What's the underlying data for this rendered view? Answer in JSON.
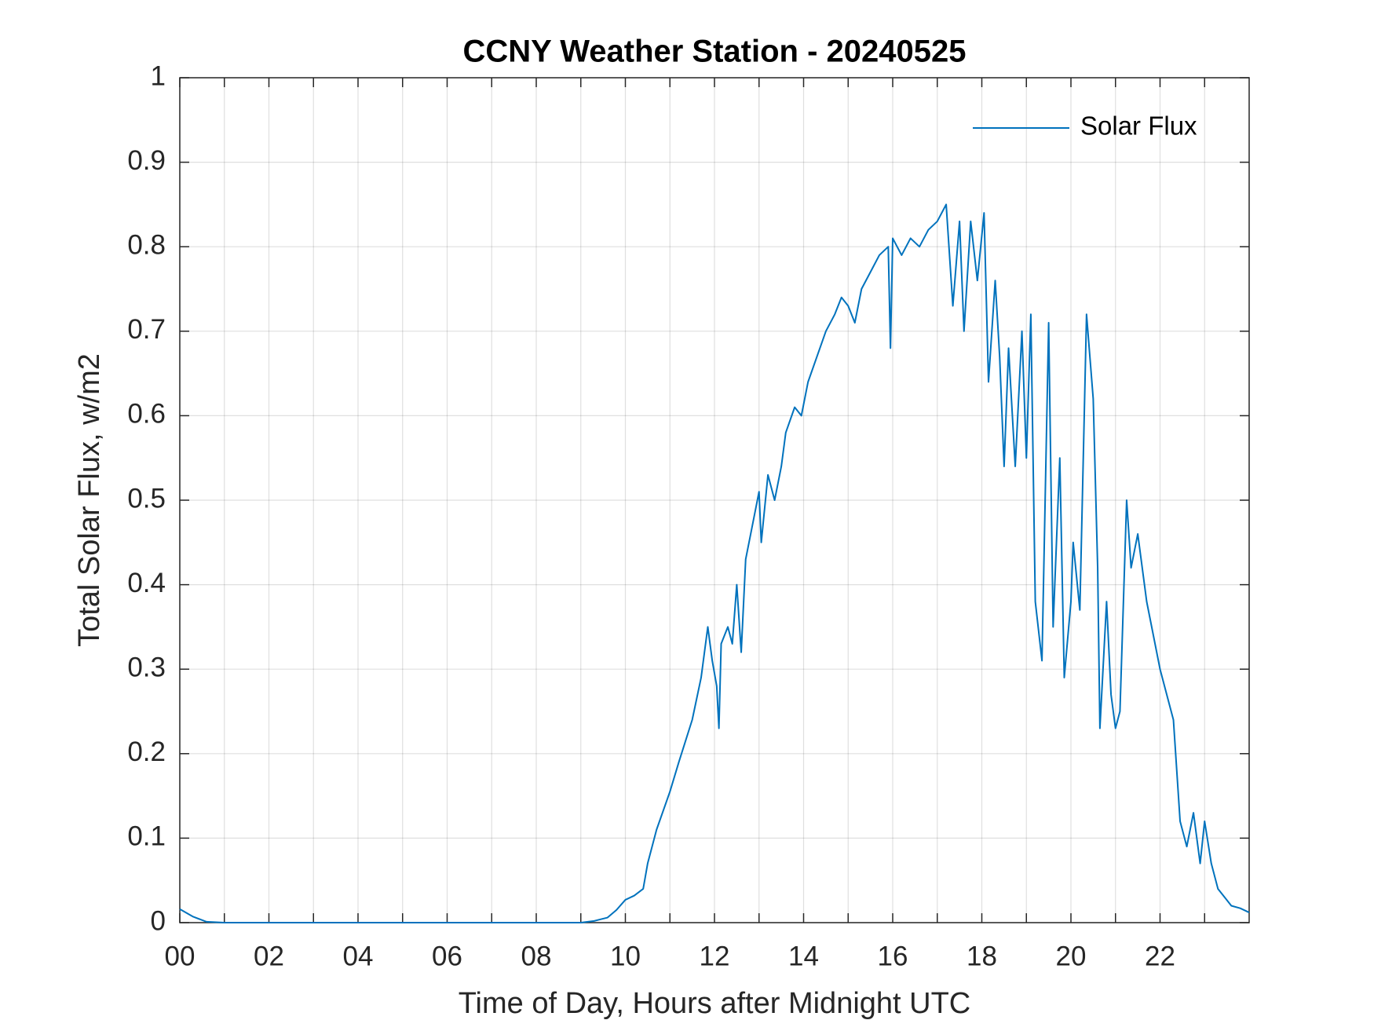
{
  "chart_data": {
    "type": "line",
    "title": "CCNY Weather Station - 20240525",
    "xlabel": "Time of Day, Hours after Midnight UTC",
    "ylabel": "Total Solar Flux, w/m2",
    "xlim": [
      0,
      24
    ],
    "ylim": [
      0,
      1
    ],
    "xticks": [
      {
        "value": 0,
        "label": "00"
      },
      {
        "value": 2,
        "label": "02"
      },
      {
        "value": 4,
        "label": "04"
      },
      {
        "value": 6,
        "label": "06"
      },
      {
        "value": 8,
        "label": "08"
      },
      10,
      12,
      14,
      16,
      18,
      20,
      22
    ],
    "xminor_ticks": [
      1,
      3,
      5,
      7,
      9,
      11,
      13,
      15,
      17,
      19,
      21,
      23
    ],
    "yticks": [
      0,
      0.1,
      0.2,
      0.3,
      0.4,
      0.5,
      0.6,
      0.7,
      0.8,
      0.9,
      1
    ],
    "grid": true,
    "legend": "top-right",
    "x": [
      0,
      0.3,
      0.6,
      1,
      2,
      3,
      4,
      5,
      6,
      7,
      8,
      9,
      9.3,
      9.6,
      9.8,
      10,
      10.2,
      10.4,
      10.5,
      10.7,
      11,
      11.2,
      11.5,
      11.7,
      11.85,
      11.95,
      12.05,
      12.1,
      12.15,
      12.3,
      12.4,
      12.5,
      12.6,
      12.7,
      12.85,
      13,
      13.05,
      13.2,
      13.35,
      13.5,
      13.6,
      13.8,
      13.95,
      14.1,
      14.3,
      14.5,
      14.7,
      14.85,
      15,
      15.15,
      15.3,
      15.5,
      15.7,
      15.9,
      15.95,
      16,
      16.2,
      16.4,
      16.6,
      16.8,
      17,
      17.2,
      17.35,
      17.5,
      17.6,
      17.75,
      17.9,
      18.05,
      18.15,
      18.3,
      18.4,
      18.5,
      18.6,
      18.75,
      18.9,
      19,
      19.1,
      19.2,
      19.35,
      19.5,
      19.6,
      19.75,
      19.85,
      20,
      20.05,
      20.2,
      20.35,
      20.5,
      20.6,
      20.65,
      20.8,
      20.9,
      21,
      21.1,
      21.25,
      21.35,
      21.5,
      21.7,
      22,
      22.3,
      22.45,
      22.6,
      22.75,
      22.9,
      23,
      23.15,
      23.3,
      23.6,
      23.8,
      24
    ],
    "series": [
      {
        "name": "Solar Flux",
        "color": "#0072bd",
        "values": [
          0.016,
          0.007,
          0.001,
          0,
          0,
          0,
          0,
          0,
          0,
          0,
          0,
          0,
          0.002,
          0.006,
          0.015,
          0.027,
          0.032,
          0.04,
          0.07,
          0.11,
          0.155,
          0.19,
          0.24,
          0.29,
          0.35,
          0.31,
          0.28,
          0.23,
          0.33,
          0.35,
          0.33,
          0.4,
          0.32,
          0.43,
          0.47,
          0.51,
          0.45,
          0.53,
          0.5,
          0.54,
          0.58,
          0.61,
          0.6,
          0.64,
          0.67,
          0.7,
          0.72,
          0.74,
          0.73,
          0.71,
          0.75,
          0.77,
          0.79,
          0.8,
          0.68,
          0.81,
          0.79,
          0.81,
          0.8,
          0.82,
          0.83,
          0.85,
          0.73,
          0.83,
          0.7,
          0.83,
          0.76,
          0.84,
          0.64,
          0.76,
          0.67,
          0.54,
          0.68,
          0.54,
          0.7,
          0.55,
          0.72,
          0.38,
          0.31,
          0.71,
          0.35,
          0.55,
          0.29,
          0.38,
          0.45,
          0.37,
          0.72,
          0.62,
          0.42,
          0.23,
          0.38,
          0.27,
          0.23,
          0.25,
          0.5,
          0.42,
          0.46,
          0.38,
          0.3,
          0.24,
          0.12,
          0.09,
          0.13,
          0.07,
          0.12,
          0.07,
          0.04,
          0.02,
          0.017,
          0.012
        ]
      }
    ]
  }
}
